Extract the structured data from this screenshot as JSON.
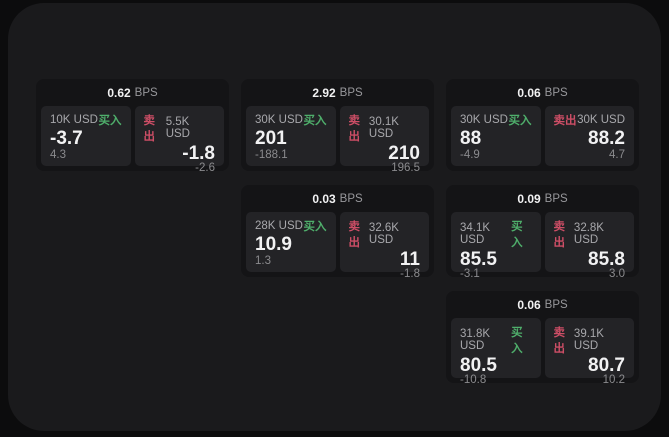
{
  "theme": {
    "page_bg": "#0c0c0d",
    "container_bg": "#1a1a1c",
    "card_bg": "#141416",
    "panel_bg": "#232326",
    "buy_green": "#4fae6b",
    "sell_red": "#cd4e66",
    "text_primary": "#f2f2f3",
    "text_secondary": "#a8a8ac",
    "text_muted": "#8b8b8e"
  },
  "labels": {
    "bps": "BPS",
    "buy": "买入",
    "sell": "卖出"
  },
  "cards": [
    {
      "bps": "0.62",
      "buy": {
        "amount": "10K USD",
        "main": "-3.7",
        "sub": "4.3"
      },
      "sell": {
        "amount": "5.5K USD",
        "main": "-1.8",
        "sub": "-2.6"
      }
    },
    {
      "bps": "2.92",
      "buy": {
        "amount": "30K USD",
        "main": "201",
        "sub": "-188.1"
      },
      "sell": {
        "amount": "30.1K USD",
        "main": "210",
        "sub": "196.5"
      }
    },
    {
      "bps": "0.06",
      "buy": {
        "amount": "30K USD",
        "main": "88",
        "sub": "-4.9"
      },
      "sell": {
        "amount": "30K USD",
        "main": "88.2",
        "sub": "4.7"
      }
    },
    {
      "bps": "0.03",
      "buy": {
        "amount": "28K USD",
        "main": "10.9",
        "sub": "1.3"
      },
      "sell": {
        "amount": "32.6K USD",
        "main": "11",
        "sub": "-1.8"
      }
    },
    {
      "bps": "0.09",
      "buy": {
        "amount": "34.1K USD",
        "main": "85.5",
        "sub": "-3.1"
      },
      "sell": {
        "amount": "32.8K USD",
        "main": "85.8",
        "sub": "3.0"
      }
    },
    {
      "bps": "0.06",
      "buy": {
        "amount": "31.8K USD",
        "main": "80.5",
        "sub": "-10.8"
      },
      "sell": {
        "amount": "39.1K USD",
        "main": "80.7",
        "sub": "10.2"
      }
    }
  ]
}
